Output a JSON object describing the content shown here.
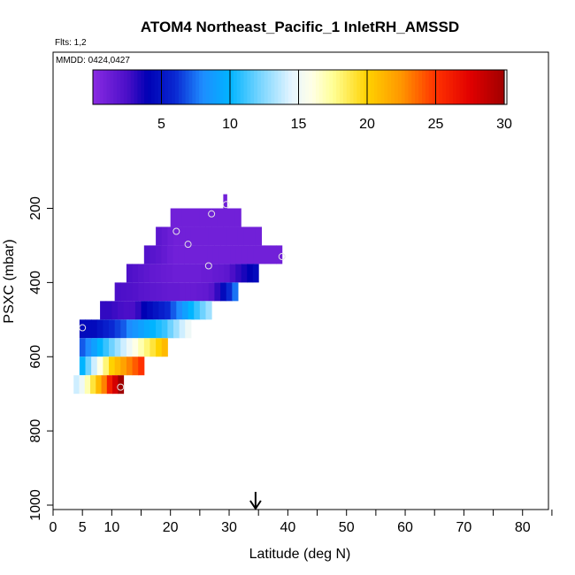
{
  "title": "ATOM4 Northeast_Pacific_1 InletRH_AMSSD",
  "flights_label": "Flts: 1,2",
  "date_label": "MMDD: 0424,0427",
  "chart_data": {
    "type": "heatmap",
    "xlabel": "Latitude (deg N)",
    "ylabel": "PSXC (mbar)",
    "xlim": [
      0,
      85
    ],
    "ylim": [
      1000,
      0
    ],
    "x_ticks": [
      0,
      5,
      10,
      20,
      30,
      40,
      50,
      60,
      70,
      80
    ],
    "x_minor_ticks": [
      15,
      25,
      35,
      45,
      55,
      65,
      75,
      85
    ],
    "y_ticks": [
      200,
      400,
      600,
      800,
      1000
    ],
    "arrow_latitude": 34.5,
    "colorbar": {
      "min": 0,
      "max": 30,
      "ticks": [
        5,
        10,
        15,
        20,
        25,
        30
      ],
      "stops": [
        {
          "v": 0,
          "color": "#8a2be2"
        },
        {
          "v": 2.5,
          "color": "#4b0fc8"
        },
        {
          "v": 4,
          "color": "#0000b4"
        },
        {
          "v": 6,
          "color": "#0a28d2"
        },
        {
          "v": 8,
          "color": "#1e8cff"
        },
        {
          "v": 10,
          "color": "#00b4ff"
        },
        {
          "v": 12,
          "color": "#6ed2ff"
        },
        {
          "v": 14.5,
          "color": "#e6f5ff"
        },
        {
          "v": 16,
          "color": "#ffffe6"
        },
        {
          "v": 17.5,
          "color": "#ffff96"
        },
        {
          "v": 20,
          "color": "#ffd200"
        },
        {
          "v": 22.5,
          "color": "#ff9600"
        },
        {
          "v": 25,
          "color": "#ff3200"
        },
        {
          "v": 27.5,
          "color": "#e10000"
        },
        {
          "v": 30,
          "color": "#a00000"
        }
      ]
    },
    "rows": [
      {
        "p_top": 162,
        "p_bot": 200,
        "lat_start": 29,
        "lat_end": 29.6,
        "values": [
          1
        ]
      },
      {
        "p_top": 200,
        "p_bot": 250,
        "lat_start": 20,
        "lat_end": 32,
        "values": [
          1,
          1,
          1,
          1,
          1,
          1,
          1,
          1,
          1,
          1,
          1,
          1
        ]
      },
      {
        "p_top": 250,
        "p_bot": 300,
        "lat_start": 17.5,
        "lat_end": 35.5,
        "values": [
          1.8,
          1.5,
          1.2,
          1,
          1,
          1,
          1,
          1,
          1,
          1,
          1,
          1,
          1,
          1,
          1,
          1,
          1,
          1
        ]
      },
      {
        "p_top": 300,
        "p_bot": 350,
        "lat_start": 15.5,
        "lat_end": 39,
        "values": [
          2.2,
          2,
          1.8,
          1.5,
          1.2,
          1,
          1,
          1,
          1,
          1,
          1,
          1,
          1,
          1,
          1,
          1,
          1,
          1,
          1,
          1,
          1,
          1,
          1,
          1
        ]
      },
      {
        "p_top": 350,
        "p_bot": 400,
        "lat_start": 12.5,
        "lat_end": 35,
        "values": [
          2.4,
          2.2,
          2,
          1.8,
          1.6,
          1.5,
          1.4,
          1.3,
          1.2,
          1.2,
          1.2,
          1.2,
          1.2,
          1.3,
          1.3,
          1.5,
          1.6,
          1.8,
          2.5,
          3,
          3.5,
          4,
          4.5
        ]
      },
      {
        "p_top": 400,
        "p_bot": 450,
        "lat_start": 10.5,
        "lat_end": 31.5,
        "values": [
          2.5,
          2.4,
          2.3,
          2.2,
          2,
          1.9,
          1.8,
          1.7,
          1.6,
          1.5,
          1.5,
          1.4,
          1.4,
          1.4,
          1.5,
          1.6,
          2,
          3,
          4.5,
          6,
          7.5
        ]
      },
      {
        "p_top": 450,
        "p_bot": 500,
        "lat_start": 8,
        "lat_end": 27,
        "values": [
          3,
          3,
          2.8,
          2.6,
          2.5,
          2.5,
          3,
          4,
          4.5,
          5,
          5.5,
          6,
          7,
          8,
          9,
          10,
          11,
          12,
          13
        ]
      },
      {
        "p_top": 500,
        "p_bot": 550,
        "lat_start": 4.5,
        "lat_end": 23.5,
        "values": [
          4.5,
          4.5,
          4.5,
          5,
          5.5,
          6,
          6.5,
          7,
          8,
          8.5,
          9,
          9.5,
          10,
          10.5,
          11,
          12,
          13,
          14,
          15
        ]
      },
      {
        "p_top": 550,
        "p_bot": 600,
        "lat_start": 4.5,
        "lat_end": 19.5,
        "values": [
          7,
          8,
          9,
          10,
          11,
          12,
          13,
          14,
          15,
          16,
          17,
          18,
          19,
          20,
          21
        ]
      },
      {
        "p_top": 600,
        "p_bot": 650,
        "lat_start": 4.5,
        "lat_end": 15.5,
        "values": [
          10,
          12,
          14,
          16,
          18,
          20,
          21,
          22,
          23,
          24,
          25
        ]
      },
      {
        "p_top": 650,
        "p_bot": 700,
        "lat_start": 3.5,
        "lat_end": 12,
        "values": [
          14,
          15,
          17,
          19,
          21,
          23,
          26,
          28,
          30
        ]
      }
    ],
    "points": [
      {
        "lat": 29.5,
        "p": 190
      },
      {
        "lat": 27,
        "p": 215
      },
      {
        "lat": 21,
        "p": 262
      },
      {
        "lat": 23,
        "p": 297
      },
      {
        "lat": 26.5,
        "p": 355
      },
      {
        "lat": 39,
        "p": 330
      },
      {
        "lat": 5,
        "p": 522
      },
      {
        "lat": 11.5,
        "p": 682
      }
    ]
  }
}
